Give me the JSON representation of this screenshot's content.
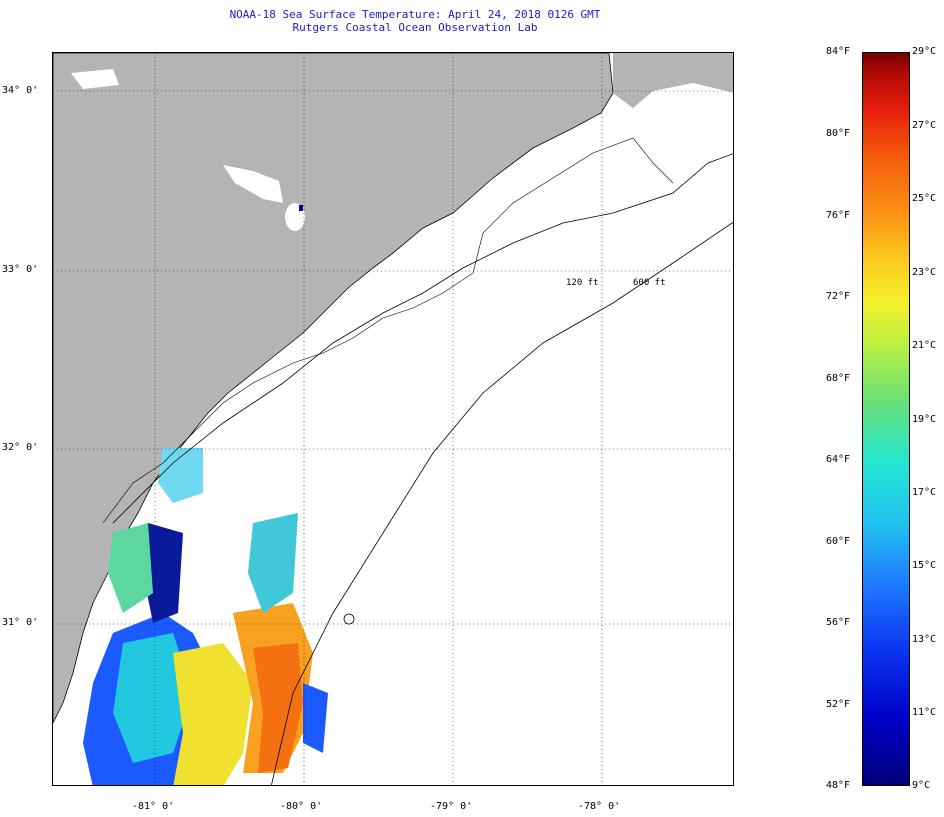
{
  "header": {
    "title": "NOAA-18 Sea Surface Temperature:  April 24, 2018 0126 GMT",
    "subtitle": "Rutgers Coastal Ocean Observation Lab"
  },
  "map": {
    "region": "South Carolina / Georgia coast",
    "land_color": "#b4b4b4",
    "no_data_color": "#ffffff",
    "lon_labels": [
      "-81° 0'",
      "-80° 0'",
      "-79° 0'",
      "-78° 0'"
    ],
    "lat_labels": [
      "34° 0'",
      "33° 0'",
      "32° 0'",
      "31° 0'"
    ],
    "isobaths": [
      "120 ft",
      "600 ft"
    ]
  },
  "colorbar": {
    "fahrenheit_labels": [
      "84°F",
      "80°F",
      "76°F",
      "72°F",
      "68°F",
      "64°F",
      "60°F",
      "56°F",
      "52°F",
      "48°F"
    ],
    "celsius_labels": [
      "29°C",
      "27°C",
      "25°C",
      "23°C",
      "21°C",
      "19°C",
      "17°C",
      "15°C",
      "13°C",
      "11°C",
      "9°C"
    ],
    "min_f": 48,
    "max_f": 84
  }
}
